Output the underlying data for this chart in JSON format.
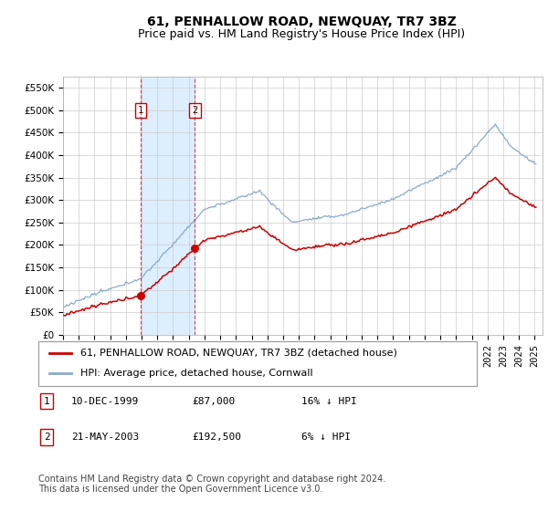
{
  "title": "61, PENHALLOW ROAD, NEWQUAY, TR7 3BZ",
  "subtitle": "Price paid vs. HM Land Registry's House Price Index (HPI)",
  "ylim": [
    0,
    575000
  ],
  "yticks": [
    0,
    50000,
    100000,
    150000,
    200000,
    250000,
    300000,
    350000,
    400000,
    450000,
    500000,
    550000
  ],
  "ytick_labels": [
    "£0",
    "£50K",
    "£100K",
    "£150K",
    "£200K",
    "£250K",
    "£300K",
    "£350K",
    "£400K",
    "£450K",
    "£500K",
    "£550K"
  ],
  "xlim_start": 1995.0,
  "xlim_end": 2025.5,
  "grid_color": "#cccccc",
  "red_line_color": "#cc0000",
  "blue_line_color": "#88aacc",
  "shade_color": "#ddeeff",
  "transaction1_x": 1999.94,
  "transaction1_y": 87000,
  "transaction2_x": 2003.39,
  "transaction2_y": 192500,
  "legend_label_red": "61, PENHALLOW ROAD, NEWQUAY, TR7 3BZ (detached house)",
  "legend_label_blue": "HPI: Average price, detached house, Cornwall",
  "table_rows": [
    {
      "num": "1",
      "date": "10-DEC-1999",
      "price": "£87,000",
      "hpi": "16% ↓ HPI"
    },
    {
      "num": "2",
      "date": "21-MAY-2003",
      "price": "£192,500",
      "hpi": "6% ↓ HPI"
    }
  ],
  "footnote": "Contains HM Land Registry data © Crown copyright and database right 2024.\nThis data is licensed under the Open Government Licence v3.0.",
  "title_fontsize": 10,
  "subtitle_fontsize": 9,
  "tick_fontsize": 7.5,
  "legend_fontsize": 8,
  "table_fontsize": 8,
  "footnote_fontsize": 7
}
